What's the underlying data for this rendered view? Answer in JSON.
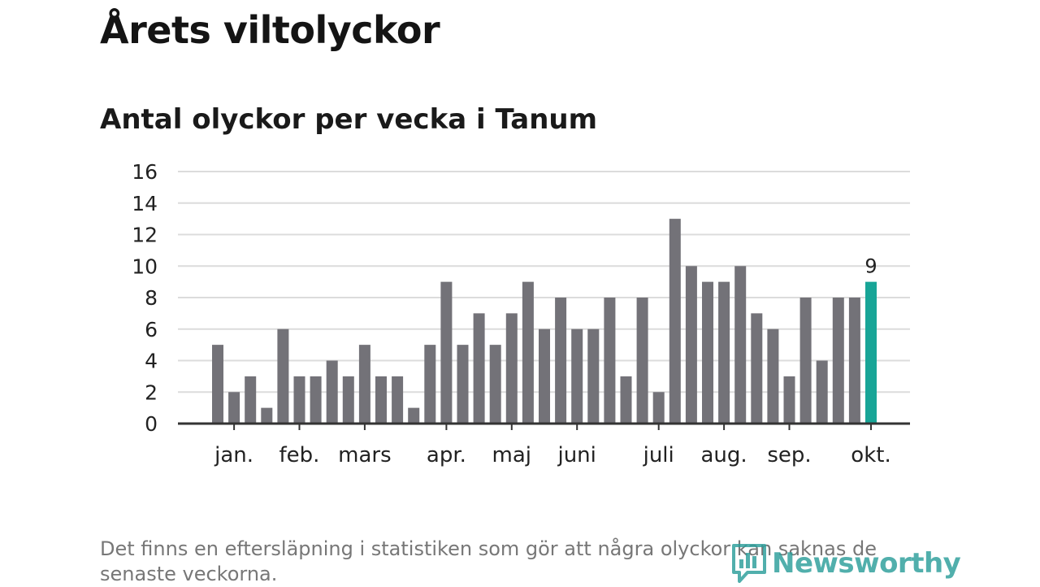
{
  "header": {
    "title": "Årets viltolyckor",
    "subtitle": "Antal olyckor per vecka i Tanum"
  },
  "footnote": "Det finns en eftersläpning i statistiken som gör att några olyckor kan saknas de senaste veckorna.",
  "logo": {
    "text": "Newsworthy",
    "icon": "bar-chart-speech-bubble-icon"
  },
  "colors": {
    "bar": "#737278",
    "highlight": "#18a597",
    "grid": "#dcdcdc",
    "axis": "#333333"
  },
  "chart_data": {
    "type": "bar",
    "title": "Antal olyckor per vecka i Tanum",
    "xlabel": "",
    "ylabel": "",
    "ylim": [
      0,
      16
    ],
    "yticks": [
      "0",
      "2",
      "4",
      "6",
      "8",
      "10",
      "12",
      "14",
      "16"
    ],
    "grid": true,
    "values": [
      5,
      2,
      3,
      1,
      6,
      3,
      3,
      4,
      3,
      5,
      3,
      3,
      1,
      5,
      9,
      5,
      7,
      5,
      7,
      9,
      6,
      8,
      6,
      6,
      8,
      3,
      8,
      2,
      13,
      10,
      9,
      9,
      10,
      7,
      6,
      3,
      8,
      4,
      8,
      8,
      9
    ],
    "highlight_index": 40,
    "highlight_label": "9",
    "month_labels": [
      {
        "label": "jan.",
        "week": 1
      },
      {
        "label": "feb.",
        "week": 5
      },
      {
        "label": "mars",
        "week": 9
      },
      {
        "label": "apr.",
        "week": 14
      },
      {
        "label": "maj",
        "week": 18
      },
      {
        "label": "juni",
        "week": 22
      },
      {
        "label": "juli",
        "week": 27
      },
      {
        "label": "aug.",
        "week": 31
      },
      {
        "label": "sep.",
        "week": 35
      },
      {
        "label": "okt.",
        "week": 40
      }
    ]
  }
}
